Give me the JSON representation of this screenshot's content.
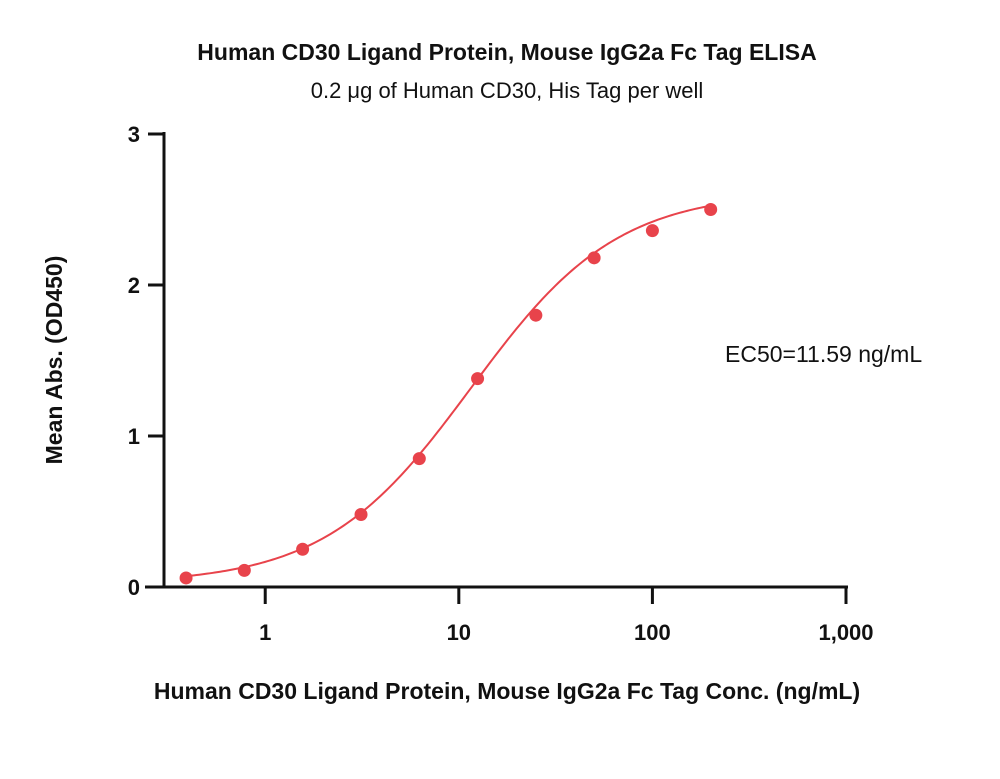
{
  "chart_data": {
    "type": "scatter",
    "title": "Human CD30 Ligand Protein, Mouse IgG2a Fc Tag ELISA",
    "subtitle": "0.2 μg of Human CD30, His Tag per well",
    "xlabel": "Human CD30 Ligand Protein, Mouse IgG2a Fc Tag Conc. (ng/mL)",
    "ylabel": "Mean Abs. (OD450)",
    "x_scale": "log",
    "xlim": [
      0.3,
      1000
    ],
    "ylim": [
      0,
      3
    ],
    "x_ticks": [
      1,
      10,
      100,
      1000
    ],
    "x_tick_labels": [
      "1",
      "10",
      "100",
      "1,000"
    ],
    "y_ticks": [
      0,
      1,
      2,
      3
    ],
    "y_tick_labels": [
      "0",
      "1",
      "2",
      "3"
    ],
    "grid": false,
    "series": [
      {
        "x": [
          0.39,
          0.78,
          1.56,
          3.125,
          6.25,
          12.5,
          25,
          50,
          100,
          200
        ],
        "y": [
          0.06,
          0.11,
          0.25,
          0.48,
          0.85,
          1.38,
          1.8,
          2.18,
          2.36,
          2.5
        ],
        "color": "#e8434b",
        "fit": {
          "model": "4PL",
          "bottom": 0.02,
          "top": 2.62,
          "ec50": 11.59,
          "hill": 1.15
        }
      }
    ],
    "annotation": "EC50=11.59 ng/mL"
  }
}
